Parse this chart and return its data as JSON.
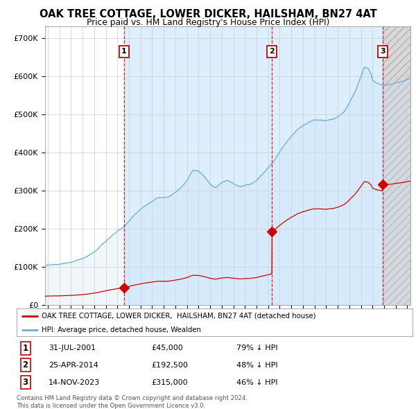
{
  "title": "OAK TREE COTTAGE, LOWER DICKER, HAILSHAM, BN27 4AT",
  "subtitle": "Price paid vs. HM Land Registry's House Price Index (HPI)",
  "xlim": [
    1994.75,
    2026.25
  ],
  "ylim": [
    0,
    730000
  ],
  "yticks": [
    0,
    100000,
    200000,
    300000,
    400000,
    500000,
    600000,
    700000
  ],
  "ytick_labels": [
    "£0",
    "£100K",
    "£200K",
    "£300K",
    "£400K",
    "£500K",
    "£600K",
    "£700K"
  ],
  "sale_dates": [
    2001.58,
    2014.32,
    2023.87
  ],
  "sale_prices": [
    45000,
    192500,
    315000
  ],
  "sale_labels": [
    "1",
    "2",
    "3"
  ],
  "sale_dates_str": [
    "31-JUL-2001",
    "25-APR-2014",
    "14-NOV-2023"
  ],
  "sale_prices_str": [
    "£45,000",
    "£192,500",
    "£315,000"
  ],
  "sale_hpi_str": [
    "79% ↓ HPI",
    "48% ↓ HPI",
    "46% ↓ HPI"
  ],
  "legend_line1": "OAK TREE COTTAGE, LOWER DICKER,  HAILSHAM, BN27 4AT (detached house)",
  "legend_line2": "HPI: Average price, detached house, Wealden",
  "footer1": "Contains HM Land Registry data © Crown copyright and database right 2024.",
  "footer2": "This data is licensed under the Open Government Licence v3.0.",
  "hpi_fill_color": "#c8dff2",
  "hpi_line_color": "#6aaed6",
  "sale_color": "#cc0000",
  "bg_color": "#ffffff",
  "grid_color": "#cccccc",
  "hatch_color": "#d8d8d8"
}
